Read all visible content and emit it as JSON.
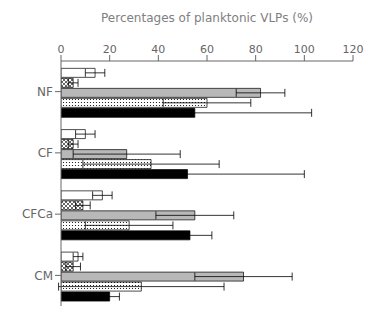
{
  "chart_data": {
    "type": "bar",
    "orientation": "horizontal",
    "x_label": "Percentages of planktonic VLPs (%)",
    "categories": [
      "NF",
      "CF",
      "CFCa",
      "CM"
    ],
    "series": [
      {
        "color": "white",
        "values": [
          14,
          10,
          17,
          7
        ],
        "errors": [
          4,
          4,
          4,
          2
        ]
      },
      {
        "color": "white",
        "values": [
          5,
          5,
          9,
          5
        ],
        "errors": [
          2,
          2,
          3,
          3
        ]
      },
      {
        "color": "#b8b8b8",
        "values": [
          82,
          27,
          55,
          75
        ],
        "errors": [
          10,
          22,
          16,
          20
        ]
      },
      {
        "color": "white",
        "values": [
          60,
          37,
          28,
          33
        ],
        "errors": [
          18,
          28,
          18,
          34
        ]
      },
      {
        "color": "black",
        "values": [
          55,
          52,
          53,
          20
        ],
        "errors": [
          48,
          48,
          9,
          4
        ]
      }
    ],
    "xlim": [
      0,
      120
    ],
    "xticks": [
      0,
      20,
      40,
      60,
      80,
      100,
      120
    ],
    "grid": false
  }
}
